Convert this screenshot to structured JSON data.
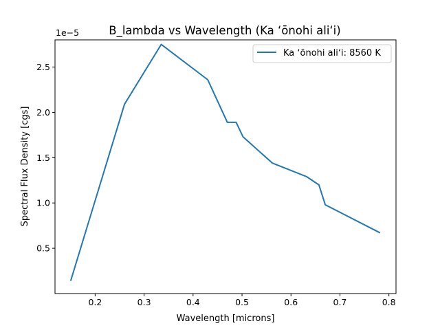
{
  "chart_data": {
    "type": "line",
    "title": "B_lambda vs Wavelength (Ka ʻōnohi aliʻi)",
    "xlabel": "Wavelength [microns]",
    "ylabel": "Spectral Flux Density [cgs]",
    "y_offset_text": "1e−5",
    "xlim": [
      0.118,
      0.8145
    ],
    "ylim": [
      0.0,
      2.8
    ],
    "x_ticks": [
      0.2,
      0.3,
      0.4,
      0.5,
      0.6,
      0.7,
      0.8
    ],
    "x_tick_labels": [
      "0.2",
      "0.3",
      "0.4",
      "0.5",
      "0.6",
      "0.7",
      "0.8"
    ],
    "y_ticks": [
      0.5,
      1.0,
      1.5,
      2.0,
      2.5
    ],
    "y_tick_labels": [
      "0.5",
      "1.0",
      "1.5",
      "2.0",
      "2.5"
    ],
    "grid": false,
    "legend_position": "top-right",
    "series": [
      {
        "name": "Ka ʻōnohi aliʻi: 8560 K",
        "color": "#1f77b4",
        "x": [
          0.15,
          0.26,
          0.335,
          0.43,
          0.47,
          0.488,
          0.502,
          0.562,
          0.632,
          0.657,
          0.67,
          0.782
        ],
        "y": [
          0.14,
          2.09,
          2.75,
          2.36,
          1.89,
          1.89,
          1.73,
          1.44,
          1.29,
          1.2,
          0.98,
          0.67
        ]
      }
    ]
  }
}
